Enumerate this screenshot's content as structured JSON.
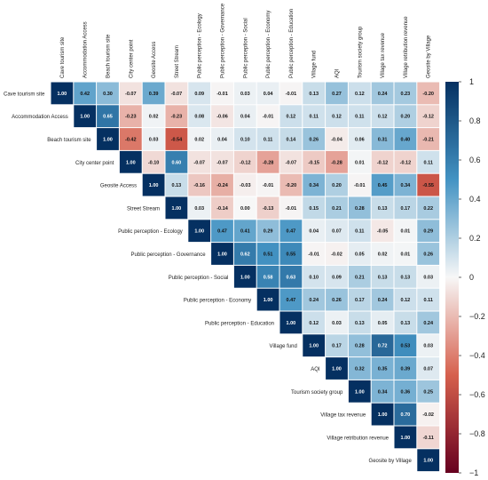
{
  "chart_data": {
    "type": "heatmap",
    "variables": [
      "Cave tourism site",
      "Accommodation Access",
      "Beach tourism site",
      "City center point",
      "Geosite Access",
      "Street Stream",
      "Public perception - Ecology",
      "Public perception - Governance",
      "Public perception - Social",
      "Public perception - Economy",
      "Public perception - Education",
      "Village fund",
      "AQI",
      "Tourism society group",
      "Village tax revenue",
      "Village retribution revenue",
      "Geosite by Village"
    ],
    "matrix": [
      [
        1.0,
        0.42,
        0.3,
        -0.07,
        0.39,
        -0.07,
        0.09,
        -0.01,
        0.03,
        0.04,
        -0.01,
        0.13,
        0.27,
        0.12,
        0.24,
        0.23,
        -0.2
      ],
      [
        null,
        1.0,
        0.65,
        -0.23,
        0.02,
        -0.23,
        0.08,
        -0.06,
        0.04,
        -0.01,
        0.12,
        0.11,
        0.12,
        0.11,
        0.12,
        0.2,
        -0.12
      ],
      [
        null,
        null,
        1.0,
        -0.42,
        0.03,
        -0.54,
        0.02,
        0.04,
        0.1,
        0.11,
        0.14,
        0.26,
        -0.04,
        0.06,
        0.31,
        0.4,
        -0.21
      ],
      [
        null,
        null,
        null,
        1.0,
        -0.1,
        0.6,
        -0.07,
        -0.07,
        -0.12,
        -0.28,
        -0.07,
        -0.15,
        -0.28,
        0.01,
        -0.12,
        -0.12,
        0.11
      ],
      [
        null,
        null,
        null,
        null,
        1.0,
        0.13,
        -0.16,
        -0.24,
        -0.03,
        -0.01,
        -0.2,
        0.34,
        0.2,
        -0.01,
        0.45,
        0.34,
        -0.55
      ],
      [
        null,
        null,
        null,
        null,
        null,
        1.0,
        0.03,
        -0.14,
        0.0,
        -0.13,
        -0.01,
        0.15,
        0.21,
        0.28,
        0.13,
        0.17,
        0.22
      ],
      [
        null,
        null,
        null,
        null,
        null,
        null,
        1.0,
        0.47,
        0.41,
        0.29,
        0.47,
        0.04,
        0.07,
        0.11,
        -0.05,
        0.01,
        0.29
      ],
      [
        null,
        null,
        null,
        null,
        null,
        null,
        null,
        1.0,
        0.62,
        0.51,
        0.55,
        -0.01,
        -0.02,
        0.05,
        0.02,
        0.01,
        0.26
      ],
      [
        null,
        null,
        null,
        null,
        null,
        null,
        null,
        null,
        1.0,
        0.58,
        0.63,
        0.1,
        0.09,
        0.21,
        0.13,
        0.13,
        0.03
      ],
      [
        null,
        null,
        null,
        null,
        null,
        null,
        null,
        null,
        null,
        1.0,
        0.47,
        0.24,
        0.26,
        0.17,
        0.24,
        0.12,
        0.11
      ],
      [
        null,
        null,
        null,
        null,
        null,
        null,
        null,
        null,
        null,
        null,
        1.0,
        0.12,
        0.03,
        0.13,
        0.05,
        0.13,
        0.24
      ],
      [
        null,
        null,
        null,
        null,
        null,
        null,
        null,
        null,
        null,
        null,
        null,
        1.0,
        0.17,
        0.28,
        0.72,
        0.53,
        0.03
      ],
      [
        null,
        null,
        null,
        null,
        null,
        null,
        null,
        null,
        null,
        null,
        null,
        null,
        1.0,
        0.32,
        0.35,
        0.39,
        0.07
      ],
      [
        null,
        null,
        null,
        null,
        null,
        null,
        null,
        null,
        null,
        null,
        null,
        null,
        null,
        1.0,
        0.34,
        0.36,
        0.25
      ],
      [
        null,
        null,
        null,
        null,
        null,
        null,
        null,
        null,
        null,
        null,
        null,
        null,
        null,
        null,
        1.0,
        0.7,
        -0.02
      ],
      [
        null,
        null,
        null,
        null,
        null,
        null,
        null,
        null,
        null,
        null,
        null,
        null,
        null,
        null,
        null,
        1.0,
        -0.11
      ],
      [
        null,
        null,
        null,
        null,
        null,
        null,
        null,
        null,
        null,
        null,
        null,
        null,
        null,
        null,
        null,
        null,
        1.0
      ]
    ],
    "value_range": [
      -1,
      1
    ],
    "colorbar": {
      "ticks": [
        1,
        0.8,
        0.6,
        0.4,
        0.2,
        0,
        -0.2,
        -0.4,
        -0.6,
        -0.8,
        -1
      ],
      "tick_labels": [
        "1",
        "0.8",
        "0.6",
        "0.4",
        "0.2",
        "0",
        "−0.2",
        "−0.4",
        "−0.6",
        "−0.8",
        "−1"
      ],
      "colors": {
        "high": "#053061",
        "mid_high": "#4393c3",
        "mid": "#f7f7f7",
        "mid_low": "#d6604d",
        "low": "#67001f"
      }
    },
    "layout": "upper-triangle",
    "legend_placement": "right"
  }
}
